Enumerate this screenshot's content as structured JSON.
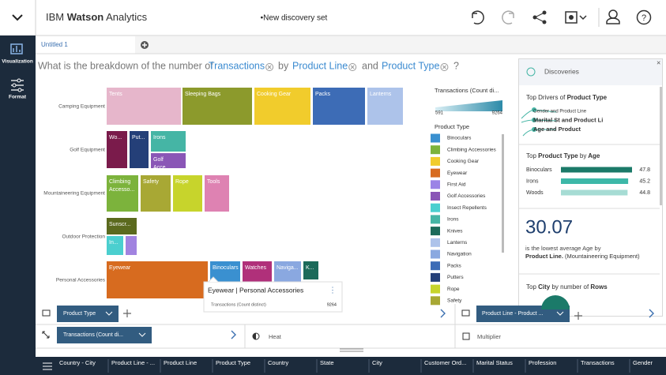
{
  "header": {
    "brand_prefix": "IBM",
    "brand_name": "Watson",
    "brand_suffix": "Analytics",
    "title": "•New discovery set"
  },
  "sidebar": [
    "Visualization",
    "Format"
  ],
  "tabs": [
    "Untitled 1"
  ],
  "question": {
    "prefix": "What is the breakdown of the number of",
    "measure": "Transactions",
    "by": "by",
    "dim1": "Product Line",
    "and": "and",
    "dim2": "Product Type",
    "suffix": "?"
  },
  "treemap": {
    "groups": [
      {
        "label": "Camping Equipment",
        "cells": [
          {
            "label": "Tents",
            "color": "#e6b6cb"
          },
          {
            "label": "Sleeping Bags",
            "color": "#8c9a2c"
          },
          {
            "label": "Cooking Gear",
            "color": "#f1cc2c"
          },
          {
            "label": "Packs",
            "color": "#3d6cb6"
          },
          {
            "label": "Lanterns",
            "color": "#adc3ea"
          }
        ]
      },
      {
        "label": "Golf Equipment",
        "cells": [
          {
            "label": "Wo...",
            "color": "#7a1b4b"
          },
          {
            "label": "Put...",
            "color": "#243f78"
          },
          {
            "label": "Irons",
            "color": "#45b5a5"
          },
          {
            "label": "Golf Acce...",
            "color": "#8a56b6"
          }
        ]
      },
      {
        "label": "Mountaineering Equipment",
        "cells": [
          {
            "label": "Climbing Accesso...",
            "color": "#7cb33c"
          },
          {
            "label": "Safety",
            "color": "#a8a834"
          },
          {
            "label": "Rope",
            "color": "#c7d42c"
          },
          {
            "label": "Tools",
            "color": "#de82b2"
          }
        ]
      },
      {
        "label": "Outdoor Protection",
        "cells": [
          {
            "label": "Sunscr...",
            "color": "#5b6a1e"
          },
          {
            "label": "In...",
            "color": "#4bcfcf"
          },
          {
            "label": null,
            "color": "#a183e0"
          }
        ]
      },
      {
        "label": "Personal Accessories",
        "cells": [
          {
            "label": "Eyewear",
            "color": "#d76b1f"
          },
          {
            "label": "Binoculars",
            "color": "#3a90d0"
          },
          {
            "label": "Watches",
            "color": "#b0307a"
          },
          {
            "label": "Naviga...",
            "color": "#8aa8e0"
          },
          {
            "label": "K...",
            "color": "#1b6a5a"
          }
        ]
      }
    ]
  },
  "tooltip": {
    "title": "Eyewear | Personal Accessories",
    "measure": "Transactions (Count distinct)",
    "value": 9264
  },
  "legend": {
    "measure_title": "Transactions (Count di...",
    "min": 591,
    "max": 9264,
    "type_title": "Product Type",
    "items": [
      {
        "label": "Binoculars",
        "color": "#3a90d0"
      },
      {
        "label": "Climbing Accessories",
        "color": "#7cb33c"
      },
      {
        "label": "Cooking Gear",
        "color": "#f1cc2c"
      },
      {
        "label": "Eyewear",
        "color": "#d76b1f"
      },
      {
        "label": "First Aid",
        "color": "#9b83e6"
      },
      {
        "label": "Golf Accessories",
        "color": "#8a56b6"
      },
      {
        "label": "Insect Repellents",
        "color": "#4bcfcf"
      },
      {
        "label": "Irons",
        "color": "#45b5a5"
      },
      {
        "label": "Knives",
        "color": "#1b6a5a"
      },
      {
        "label": "Lanterns",
        "color": "#adc3ea"
      },
      {
        "label": "Navigation",
        "color": "#8aa8e0"
      },
      {
        "label": "Packs",
        "color": "#3d6cb6"
      },
      {
        "label": "Putters",
        "color": "#243f78"
      },
      {
        "label": "Rope",
        "color": "#c7d42c"
      },
      {
        "label": "Safety",
        "color": "#a8a834"
      }
    ]
  },
  "discoveries": {
    "title": "Discoveries",
    "drivers": {
      "prefix": "Top Drivers of",
      "target": "Product Type",
      "items": [
        "Gender and Product Line",
        "Marital St and Product Li",
        "Age and Product"
      ]
    },
    "top": {
      "prefix": "Top",
      "measure": "Product Type",
      "by": "by",
      "dim": "Age",
      "rows": [
        {
          "label": "Binoculars",
          "value": 47.8,
          "color": "#1b7a69"
        },
        {
          "label": "Irons",
          "value": 45.2,
          "color": "#3db8a8"
        },
        {
          "label": "Woods",
          "value": 44.8,
          "color": "#a6dcd4"
        }
      ]
    },
    "stat": {
      "value": 30.07,
      "text": "is the lowest average Age by",
      "emphasis": "Product Line.",
      "note": "(Mountaineering Equipment)"
    },
    "city": {
      "prefix": "Top",
      "measure": "City",
      "middle": "by number of",
      "dim": "Rows"
    }
  },
  "controls": {
    "columns_field": "Product Type",
    "rows_field": "Product Line - Product ...",
    "size_field": "Transactions (Count di...",
    "color_label": "Heat",
    "multiplier_label": "Multiplier"
  },
  "fields": [
    "Country - City",
    "Product Line - ...",
    "Product Line",
    "Product Type",
    "Country",
    "State",
    "City",
    "Customer Ord...",
    "Marital Status",
    "Profession",
    "Transactions",
    "Gender"
  ]
}
